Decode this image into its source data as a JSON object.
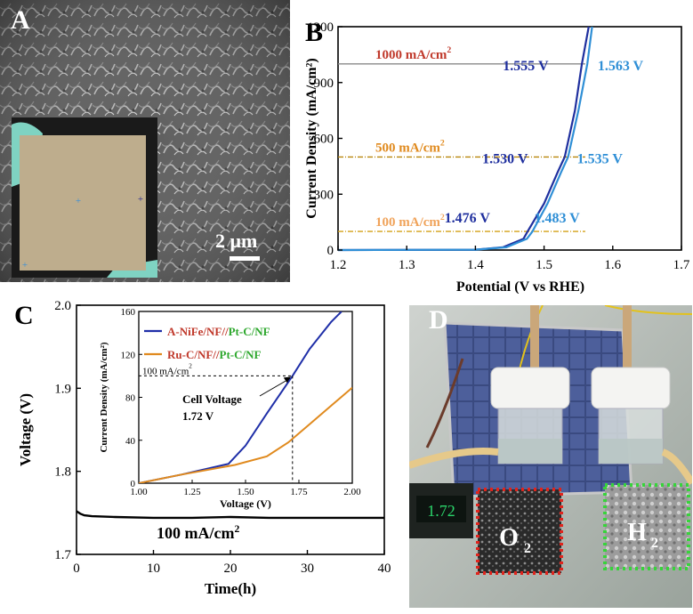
{
  "panel_labels": {
    "a": "A",
    "b": "B",
    "c": "C",
    "d": "D"
  },
  "sem": {
    "scale_bar": "2 μm"
  },
  "photo": {
    "o2_label": "O",
    "o2_sub": "2",
    "h2_label": "H",
    "h2_sub": "2",
    "meter_text": "1.72"
  },
  "chart_data": [
    {
      "type": "line",
      "panel": "B",
      "xlabel": "Potential (V vs RHE)",
      "ylabel": "Current Density (mA/cm²)",
      "xlim": [
        1.2,
        1.7
      ],
      "ylim": [
        0,
        1200
      ],
      "xticks": [
        "1.2",
        "1.3",
        "1.4",
        "1.5",
        "1.6",
        "1.7"
      ],
      "yticks": [
        "0",
        "300",
        "600",
        "900",
        "1200"
      ],
      "series": [
        {
          "color": "#1f2f9e",
          "x": [
            1.2,
            1.4,
            1.44,
            1.47,
            1.476,
            1.5,
            1.52,
            1.53,
            1.545,
            1.555,
            1.565
          ],
          "y": [
            0,
            2,
            15,
            60,
            100,
            250,
            420,
            500,
            750,
            1000,
            1200
          ]
        },
        {
          "color": "#2f8fd6",
          "x": [
            1.2,
            1.4,
            1.445,
            1.475,
            1.483,
            1.505,
            1.525,
            1.535,
            1.55,
            1.563,
            1.57
          ],
          "y": [
            0,
            2,
            15,
            60,
            100,
            250,
            420,
            500,
            750,
            1000,
            1200
          ]
        }
      ],
      "reference_lines": [
        {
          "y": 1000,
          "label": "1000 mA/cm",
          "label_sup": "2",
          "color": "#c0392b",
          "line_color": "#8a8a8a"
        },
        {
          "y": 500,
          "label": "500 mA/cm",
          "label_sup": "2",
          "color": "#e08a1e",
          "line_color": "#b8860b"
        },
        {
          "y": 100,
          "label": "100 mA/cm",
          "label_sup": "2",
          "color": "#f0a35a",
          "line_color": "#d4a017"
        }
      ],
      "annotations": [
        {
          "text": "1.555 V",
          "y_ref": 1000,
          "color": "#1f2f9e"
        },
        {
          "text": "1.563 V",
          "y_ref": 1000,
          "color": "#2f8fd6"
        },
        {
          "text": "1.530 V",
          "y_ref": 500,
          "color": "#1f2f9e"
        },
        {
          "text": "1.535 V",
          "y_ref": 500,
          "color": "#2f8fd6"
        },
        {
          "text": "1.476 V",
          "y_ref": 100,
          "color": "#1f2f9e"
        },
        {
          "text": "1.483 V",
          "y_ref": 100,
          "color": "#2f8fd6"
        }
      ]
    },
    {
      "type": "line",
      "panel": "C",
      "xlabel": "Time(h)",
      "ylabel": "Voltage (V)",
      "xlim": [
        0,
        40
      ],
      "ylim": [
        1.7,
        2.0
      ],
      "xticks": [
        "0",
        "10",
        "20",
        "30",
        "40"
      ],
      "yticks": [
        "1.7",
        "1.8",
        "1.9",
        "2.0"
      ],
      "series": [
        {
          "color": "#000000",
          "x": [
            0,
            0.5,
            1,
            2,
            5,
            10,
            15,
            20,
            25,
            30,
            35,
            40
          ],
          "y": [
            1.752,
            1.749,
            1.747,
            1.746,
            1.745,
            1.744,
            1.744,
            1.745,
            1.744,
            1.744,
            1.744,
            1.744
          ]
        }
      ],
      "annotation": {
        "text": "100 mA/cm",
        "sup": "2"
      }
    },
    {
      "type": "line",
      "panel": "C-inset",
      "xlabel": "Voltage (V)",
      "ylabel": "Current Density (mA/cm²)",
      "xlim": [
        1.0,
        2.0
      ],
      "ylim": [
        0,
        160
      ],
      "xticks": [
        "1.00",
        "1.25",
        "1.50",
        "1.75",
        "2.00"
      ],
      "yticks": [
        "0",
        "40",
        "80",
        "120",
        "160"
      ],
      "series": [
        {
          "name_a": "A-NiFe/NF",
          "name_sep": "//",
          "name_b": "Pt-C/NF",
          "color": "#1f2fa8",
          "name_color_a": "#c0392b",
          "name_color_b": "#2ea82e",
          "x": [
            1.0,
            1.2,
            1.42,
            1.5,
            1.6,
            1.72,
            1.8,
            1.9,
            1.95
          ],
          "y": [
            0,
            8,
            18,
            35,
            65,
            100,
            125,
            150,
            160
          ]
        },
        {
          "name_a": "Ru-C/NF",
          "name_sep": "//",
          "name_b": "Pt-C/NF",
          "color": "#e08a1e",
          "name_color_a": "#c0392b",
          "name_color_b": "#2ea82e",
          "x": [
            1.0,
            1.2,
            1.45,
            1.6,
            1.7,
            1.8,
            1.9,
            2.0
          ],
          "y": [
            0,
            8,
            17,
            25,
            38,
            55,
            72,
            89
          ]
        }
      ],
      "ref_label": "100 mA/cm",
      "ref_sup": "2",
      "annotation_1": "Cell Voltage",
      "annotation_2": "1.72 V",
      "ref_x": 1.72,
      "ref_y": 100
    }
  ]
}
